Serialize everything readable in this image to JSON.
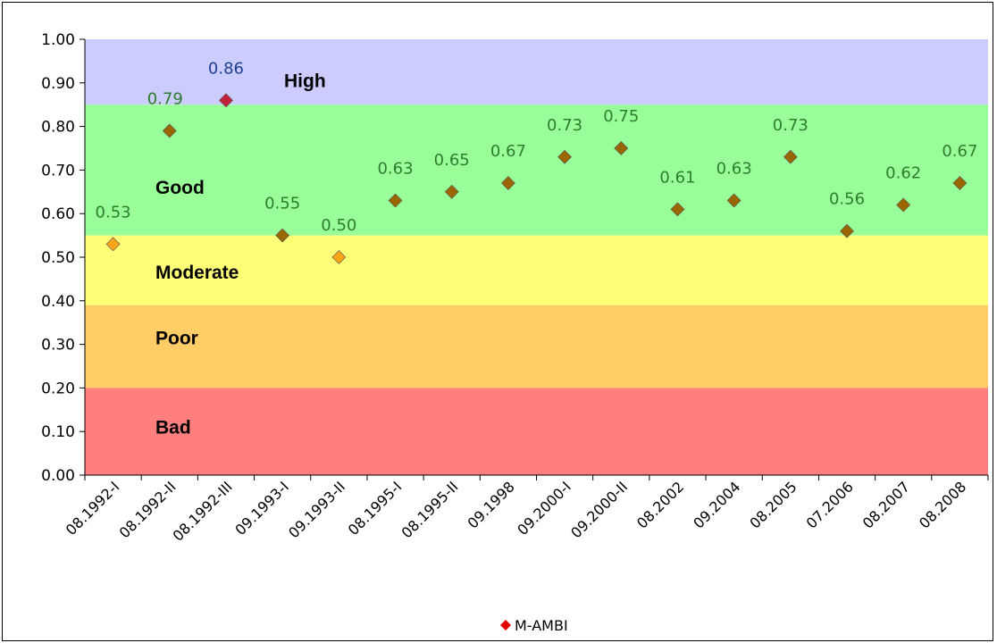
{
  "chart_data": {
    "type": "scatter",
    "title": "",
    "xlabel": "",
    "ylabel": "",
    "ylim": [
      0,
      1
    ],
    "yticks": [
      "0.00",
      "0.10",
      "0.20",
      "0.30",
      "0.40",
      "0.50",
      "0.60",
      "0.70",
      "0.80",
      "0.90",
      "1.00"
    ],
    "categories": [
      "08.1992-I",
      "08.1992-II",
      "08.1992-III",
      "09.1993-I",
      "09.1993-II",
      "08.1995-I",
      "08.1995-II",
      "09.1998",
      "09.2000-I",
      "09.2000-II",
      "08.2002",
      "09.2004",
      "08.2005",
      "07.2006",
      "08.2007",
      "08.2008"
    ],
    "series": [
      {
        "name": "M-AMBI",
        "values": [
          0.53,
          0.79,
          0.86,
          0.55,
          0.5,
          0.63,
          0.65,
          0.67,
          0.73,
          0.75,
          0.61,
          0.63,
          0.73,
          0.56,
          0.62,
          0.67
        ],
        "labels": [
          "0.53",
          "0.79",
          "0.86",
          "0.55",
          "0.50",
          "0.63",
          "0.65",
          "0.67",
          "0.73",
          "0.75",
          "0.61",
          "0.63",
          "0.73",
          "0.56",
          "0.62",
          "0.67"
        ],
        "legend_color": "#e00000"
      }
    ],
    "zones": [
      {
        "name": "High",
        "from": 0.85,
        "to": 1.0,
        "color": "#ccccff",
        "marker": "#c0203a",
        "label_color": "#1f3f8f"
      },
      {
        "name": "Good",
        "from": 0.55,
        "to": 0.85,
        "color": "#99ff99",
        "marker": "#996600",
        "label_color": "#2e7d2e"
      },
      {
        "name": "Moderate",
        "from": 0.39,
        "to": 0.55,
        "color": "#ffff77",
        "marker": "#ffa51a",
        "label_color": "#2e7d2e"
      },
      {
        "name": "Poor",
        "from": 0.2,
        "to": 0.39,
        "color": "#ffcc66",
        "marker": "#ffa51a",
        "label_color": "#2e7d2e"
      },
      {
        "name": "Bad",
        "from": 0.0,
        "to": 0.2,
        "color": "#ff7f7f",
        "marker": "#ff5555",
        "label_color": "#2e7d2e"
      }
    ],
    "grid": false,
    "legend_position": "bottom"
  }
}
